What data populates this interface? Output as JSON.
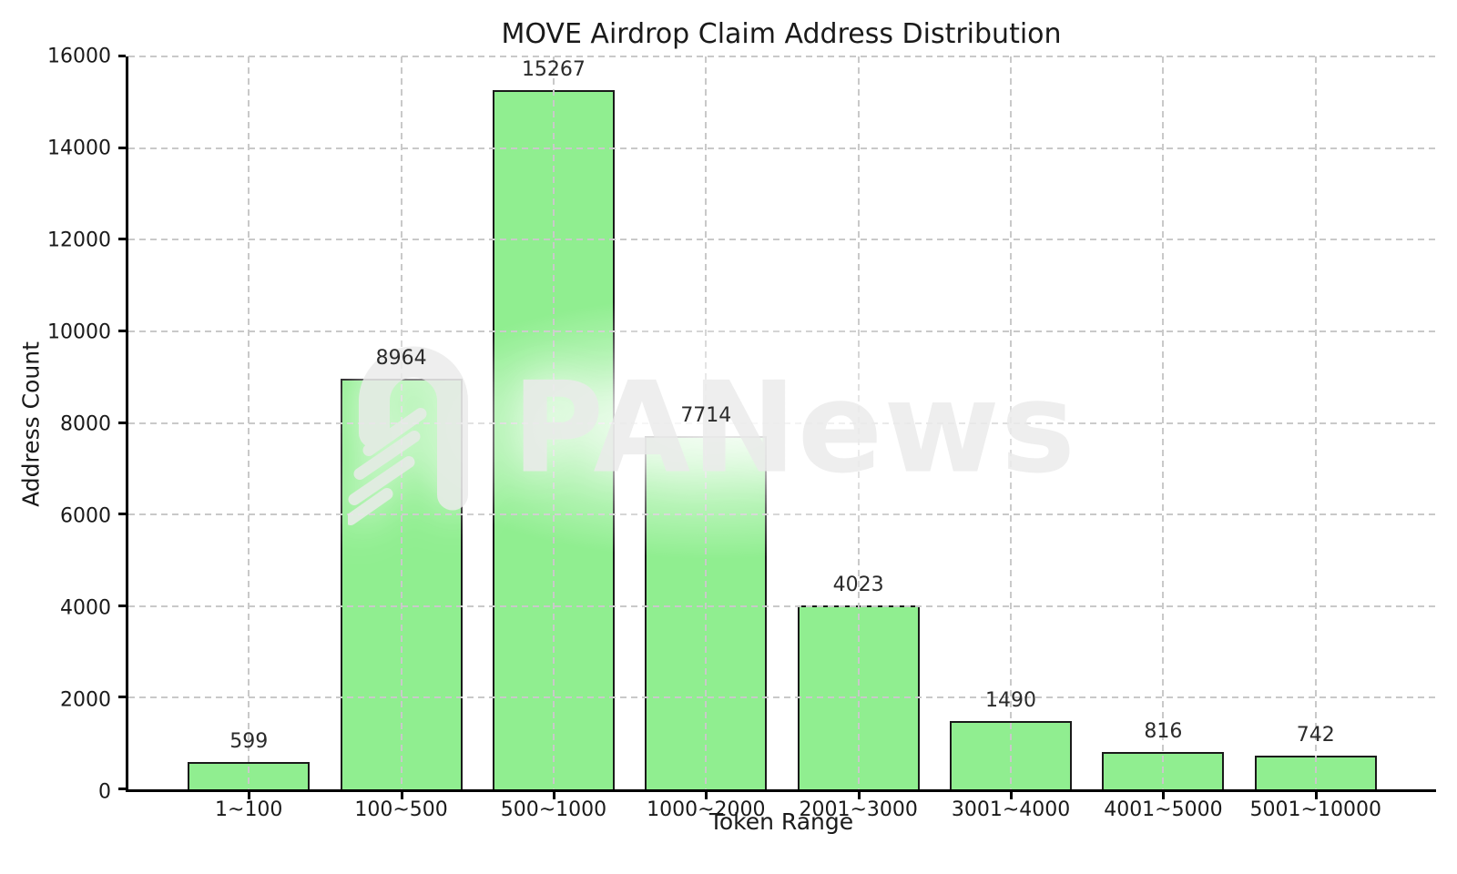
{
  "chart_data": {
    "type": "bar",
    "title": "MOVE Airdrop Claim Address Distribution",
    "xlabel": "Token Range",
    "ylabel": "Address Count",
    "categories": [
      "1~100",
      "100~500",
      "500~1000",
      "1000~2000",
      "2001~3000",
      "3001~4000",
      "4001~5000",
      "5001~10000"
    ],
    "values": [
      599,
      8964,
      15267,
      7714,
      4023,
      1490,
      816,
      742
    ],
    "ylim": [
      0,
      16000
    ],
    "yticks": [
      0,
      2000,
      4000,
      6000,
      8000,
      10000,
      12000,
      14000,
      16000
    ],
    "grid": true,
    "grid_style": "dashed",
    "legend": "none",
    "bar_color": "#90EE90",
    "bar_edge_color": "#1a1a1a",
    "grid_color": "#c9c9c9",
    "axis_color": "#000000",
    "text_color": "#1a1a1a",
    "value_label_color": "#2b2b2b"
  },
  "watermark": {
    "text": "PANews",
    "color": "#ececec",
    "logo": "panews-arch-logo"
  }
}
